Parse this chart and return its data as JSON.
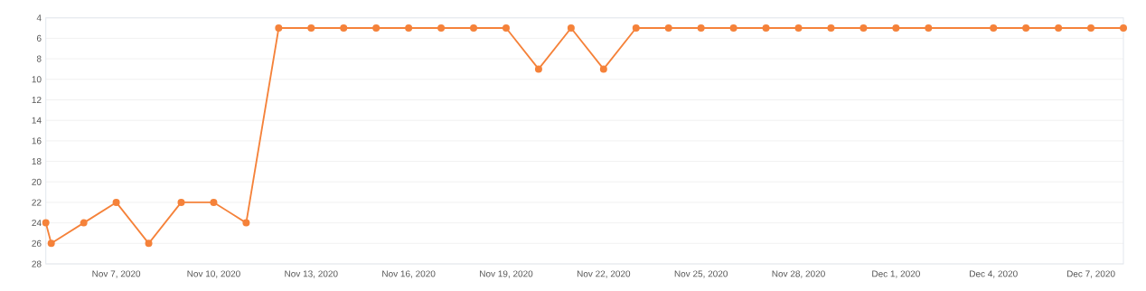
{
  "chart_data": {
    "type": "line",
    "x": [
      "2020-11-04T20:00",
      "2020-11-05",
      "2020-11-06",
      "2020-11-07",
      "2020-11-08",
      "2020-11-09",
      "2020-11-10",
      "2020-11-11",
      "2020-11-12",
      "2020-11-13",
      "2020-11-14",
      "2020-11-15",
      "2020-11-16",
      "2020-11-17",
      "2020-11-18",
      "2020-11-19",
      "2020-11-20",
      "2020-11-21",
      "2020-11-22",
      "2020-11-23",
      "2020-11-24",
      "2020-11-25",
      "2020-11-26",
      "2020-11-27",
      "2020-11-28",
      "2020-11-29",
      "2020-11-30",
      "2020-12-01",
      "2020-12-02",
      "2020-12-04",
      "2020-12-05",
      "2020-12-06",
      "2020-12-07",
      "2020-12-08"
    ],
    "series": [
      {
        "color": "#f5823a",
        "values": [
          24,
          26,
          24,
          22,
          26,
          22,
          22,
          24,
          5,
          5,
          5,
          5,
          5,
          5,
          5,
          5,
          9,
          5,
          9,
          5,
          5,
          5,
          5,
          5,
          5,
          5,
          5,
          5,
          5,
          5,
          5,
          5,
          5,
          5
        ]
      }
    ],
    "xlim": [
      "2020-11-04T20:00",
      "2020-12-08"
    ],
    "xticks": [
      {
        "value": "2020-11-07",
        "label": "Nov 7, 2020"
      },
      {
        "value": "2020-11-10",
        "label": "Nov 10, 2020"
      },
      {
        "value": "2020-11-13",
        "label": "Nov 13, 2020"
      },
      {
        "value": "2020-11-16",
        "label": "Nov 16, 2020"
      },
      {
        "value": "2020-11-19",
        "label": "Nov 19, 2020"
      },
      {
        "value": "2020-11-22",
        "label": "Nov 22, 2020"
      },
      {
        "value": "2020-11-25",
        "label": "Nov 25, 2020"
      },
      {
        "value": "2020-11-28",
        "label": "Nov 28, 2020"
      },
      {
        "value": "2020-12-01",
        "label": "Dec 1, 2020"
      },
      {
        "value": "2020-12-04",
        "label": "Dec 4, 2020"
      },
      {
        "value": "2020-12-07",
        "label": "Dec 7, 2020"
      }
    ],
    "ylim": [
      28,
      4
    ],
    "yticks": [
      4,
      6,
      8,
      10,
      12,
      14,
      16,
      18,
      20,
      22,
      24,
      26,
      28
    ],
    "grid": "y",
    "marker": "circle",
    "line_style": "solid"
  }
}
